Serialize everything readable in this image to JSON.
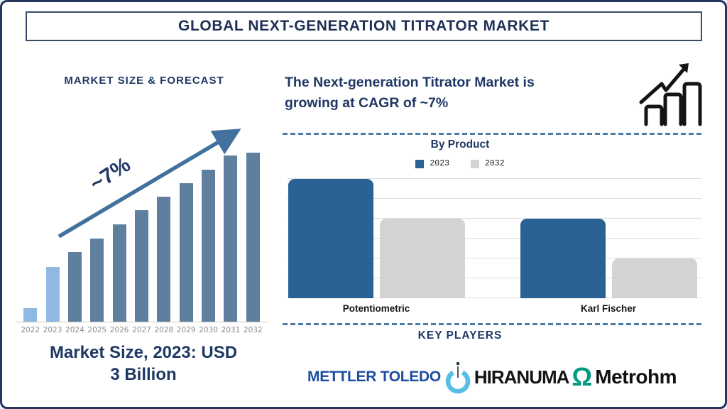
{
  "title": "GLOBAL NEXT-GENERATION TITRATOR MARKET",
  "left_panel": {
    "heading": "MARKET SIZE & FORECAST",
    "growth_annotation": "~7%",
    "caption_lines": [
      "Market Size, 2023: USD",
      "3 Billion"
    ]
  },
  "right_panel": {
    "headline_lines": [
      "The Next-generation Titrator Market is",
      "growing at CAGR of ~7%"
    ],
    "section_by_product": "By Product",
    "section_key_players": "KEY PLAYERS",
    "players": [
      {
        "name": "METTLER TOLEDO",
        "color": "#1b4da1"
      },
      {
        "name": "HIRANUMA",
        "color": "#151515",
        "mark": "power-circle-icon",
        "mark_color": "#57bee5"
      },
      {
        "name": "Metrohm",
        "color": "#111111",
        "mark": "omega-icon",
        "mark_glyph": "Ω",
        "mark_color": "#009b82"
      }
    ]
  },
  "colors": {
    "navy_text": "#1f3864",
    "trend_arrow": "#41719c",
    "dashed_divider": "#4d7da7",
    "page_border": "#24365c"
  },
  "chart_data": [
    {
      "type": "bar",
      "title": "MARKET SIZE & FORECAST",
      "x": [
        "2022",
        "2023",
        "2024",
        "2025",
        "2026",
        "2027",
        "2028",
        "2029",
        "2030",
        "2031",
        "2032"
      ],
      "values_pct_of_max": [
        8,
        32.5,
        41,
        49,
        57.5,
        66,
        74,
        82,
        90,
        98.5,
        100
      ],
      "bar_colors": {
        "highlight_years": [
          "2022",
          "2023"
        ],
        "highlight": "#8fb9e2",
        "default": "#5f7f9e"
      },
      "annotation": {
        "text": "~7%",
        "shape": "trend-arrow",
        "color": "#41719c"
      },
      "xlabel": "",
      "ylabel": "",
      "grid": false,
      "tick_label_color": "#8a8a8a",
      "note": "stylized forecast bars, no y-axis scale shown"
    },
    {
      "type": "bar",
      "title": "By Product",
      "categories": [
        "Potentiometric",
        "Karl Fischer"
      ],
      "series": [
        {
          "name": "2023",
          "color": "#2b6295",
          "values": [
            6,
            4
          ]
        },
        {
          "name": "2032",
          "color": "#d3d3d3",
          "values": [
            4,
            2
          ]
        }
      ],
      "ylim": [
        0,
        6
      ],
      "grid": true,
      "legend_position": "top",
      "note": "relative bar heights, no y-axis labels shown"
    }
  ]
}
